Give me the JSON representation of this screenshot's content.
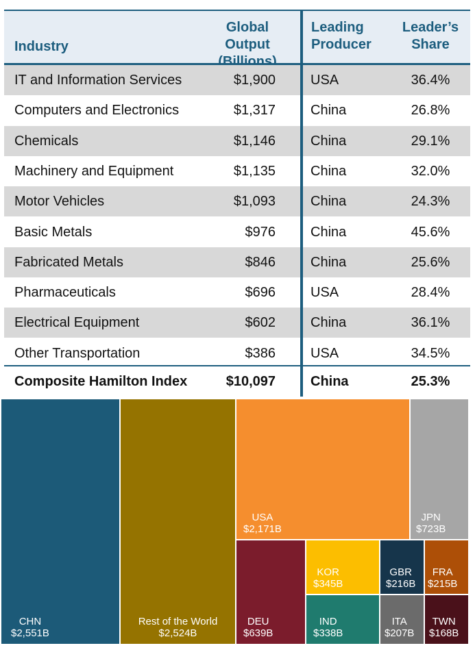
{
  "chart_data": [
    {
      "type": "table",
      "columns": [
        "Industry",
        "Global Output (Billions)",
        "Leading Producer",
        "Leader’s Share"
      ],
      "header": {
        "industry": "Industry",
        "output_line1": "Global Output",
        "output_line2": "(Billions)",
        "producer_line1": "Leading",
        "producer_line2": "Producer",
        "share_line1": "Leader’s",
        "share_line2": "Share"
      },
      "rows": [
        {
          "industry": "IT and Information Services",
          "output": "$1,900",
          "producer": "USA",
          "share": "36.4%"
        },
        {
          "industry": "Computers and Electronics",
          "output": "$1,317",
          "producer": "China",
          "share": "26.8%"
        },
        {
          "industry": "Chemicals",
          "output": "$1,146",
          "producer": "China",
          "share": "29.1%"
        },
        {
          "industry": "Machinery and Equipment",
          "output": "$1,135",
          "producer": "China",
          "share": "32.0%"
        },
        {
          "industry": "Motor Vehicles",
          "output": "$1,093",
          "producer": "China",
          "share": "24.3%"
        },
        {
          "industry": "Basic Metals",
          "output": "$976",
          "producer": "China",
          "share": "45.6%"
        },
        {
          "industry": "Fabricated Metals",
          "output": "$846",
          "producer": "China",
          "share": "25.6%"
        },
        {
          "industry": "Pharmaceuticals",
          "output": "$696",
          "producer": "USA",
          "share": "28.4%"
        },
        {
          "industry": "Electrical Equipment",
          "output": "$602",
          "producer": "China",
          "share": "36.1%"
        },
        {
          "industry": "Other Transportation",
          "output": "$386",
          "producer": "USA",
          "share": "34.5%"
        }
      ],
      "total": {
        "industry": "Composite Hamilton Index",
        "output": "$10,097",
        "producer": "China",
        "share": "25.3%"
      }
    },
    {
      "type": "treemap",
      "unit": "B",
      "items": [
        {
          "label": "CHN",
          "display": "$2,551B",
          "value": 2551,
          "color": "#1c5a78"
        },
        {
          "label": "Rest of the World",
          "display": "$2,524B",
          "value": 2524,
          "color": "#957300"
        },
        {
          "label": "USA",
          "display": "$2,171B",
          "value": 2171,
          "color": "#f58e2e"
        },
        {
          "label": "JPN",
          "display": "$723B",
          "value": 723,
          "color": "#a6a6a6"
        },
        {
          "label": "DEU",
          "display": "$639B",
          "value": 639,
          "color": "#7b1c2c"
        },
        {
          "label": "KOR",
          "display": "$345B",
          "value": 345,
          "color": "#fcbe00"
        },
        {
          "label": "IND",
          "display": "$338B",
          "value": 338,
          "color": "#1f7b6e"
        },
        {
          "label": "GBR",
          "display": "$216B",
          "value": 216,
          "color": "#16354b"
        },
        {
          "label": "FRA",
          "display": "$215B",
          "value": 215,
          "color": "#ad4f07"
        },
        {
          "label": "ITA",
          "display": "$207B",
          "value": 207,
          "color": "#6b6b6b"
        },
        {
          "label": "TWN",
          "display": "$168B",
          "value": 168,
          "color": "#4a111a"
        }
      ]
    }
  ],
  "colors": {
    "rule": "#1c5d7e",
    "header_text": "#1c5d7e",
    "shade": "#d8d8d8"
  }
}
